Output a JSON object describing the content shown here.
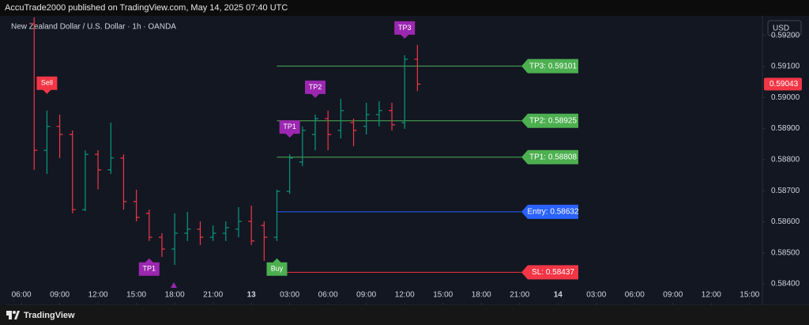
{
  "header": "AccuTrade2000 published on TradingView.com, May 14, 2025 07:40 UTC",
  "footer": "TradingView",
  "chart_data": {
    "type": "ohlc",
    "title": "New Zealand Dollar / U.S. Dollar · 1h · OANDA",
    "currency": "USD",
    "up_color": "#089981",
    "down_color": "#f23645",
    "xlim": [
      -1.18,
      58.0
    ],
    "ylim": [
      0.58377,
      0.59263
    ],
    "xticks": [
      {
        "value": 0,
        "label": "06:00"
      },
      {
        "value": 3,
        "label": "09:00"
      },
      {
        "value": 6,
        "label": "12:00"
      },
      {
        "value": 9,
        "label": "15:00"
      },
      {
        "value": 12,
        "label": "18:00"
      },
      {
        "value": 15,
        "label": "21:00"
      },
      {
        "value": 18,
        "label": "13"
      },
      {
        "value": 21,
        "label": "03:00"
      },
      {
        "value": 24,
        "label": "06:00"
      },
      {
        "value": 27,
        "label": "09:00"
      },
      {
        "value": 30,
        "label": "12:00"
      },
      {
        "value": 33,
        "label": "15:00"
      },
      {
        "value": 36,
        "label": "18:00"
      },
      {
        "value": 39,
        "label": "21:00"
      },
      {
        "value": 42,
        "label": "14"
      },
      {
        "value": 45,
        "label": "03:00"
      },
      {
        "value": 48,
        "label": "06:00"
      },
      {
        "value": 51,
        "label": "09:00"
      },
      {
        "value": 54,
        "label": "12:00"
      },
      {
        "value": 57,
        "label": "15:00"
      }
    ],
    "yticks": [
      {
        "value": 0.592,
        "label": "0.59200"
      },
      {
        "value": 0.591,
        "label": "0.59100"
      },
      {
        "value": 0.59,
        "label": "0.59000"
      },
      {
        "value": 0.589,
        "label": "0.58900"
      },
      {
        "value": 0.588,
        "label": "0.58800"
      },
      {
        "value": 0.587,
        "label": "0.58700"
      },
      {
        "value": 0.586,
        "label": "0.58600"
      },
      {
        "value": 0.585,
        "label": "0.58500"
      },
      {
        "value": 0.584,
        "label": "0.58400"
      }
    ],
    "x": [
      1,
      2,
      3,
      4,
      5,
      6,
      7,
      8,
      9,
      10,
      11,
      12,
      13,
      14,
      15,
      16,
      17,
      18,
      19,
      20,
      21,
      22,
      23,
      24,
      25,
      26,
      27,
      28,
      29,
      30,
      31
    ],
    "open": [
      0.59237,
      0.5883,
      0.58907,
      0.58881,
      0.58639,
      0.58817,
      0.58767,
      0.58805,
      0.58665,
      0.58627,
      0.5855,
      0.58512,
      0.58563,
      0.58576,
      0.5855,
      0.58563,
      0.58576,
      0.58601,
      0.58588,
      0.5855,
      0.58698,
      0.58792,
      0.58881,
      0.58932,
      0.58894,
      0.58919,
      0.58907,
      0.58945,
      0.58958,
      0.58919,
      0.59123
    ],
    "high": [
      0.59258,
      0.58958,
      0.58945,
      0.58894,
      0.5883,
      0.5883,
      0.58919,
      0.58817,
      0.58703,
      0.58639,
      0.58563,
      0.58627,
      0.58632,
      0.58601,
      0.58588,
      0.58601,
      0.58647,
      0.58652,
      0.58601,
      0.58703,
      0.58817,
      0.58907,
      0.58945,
      0.58958,
      0.58996,
      0.58932,
      0.58983,
      0.58988,
      0.58983,
      0.59136,
      0.59169
    ],
    "low": [
      0.58767,
      0.58754,
      0.58805,
      0.58627,
      0.58634,
      0.58704,
      0.58754,
      0.58639,
      0.58601,
      0.58538,
      0.58487,
      0.58461,
      0.58538,
      0.58525,
      0.58538,
      0.58538,
      0.5855,
      0.58525,
      0.58474,
      0.58538,
      0.5869,
      0.58779,
      0.5883,
      0.5883,
      0.58868,
      0.58843,
      0.58881,
      0.58907,
      0.58894,
      0.58899,
      0.59021
    ],
    "close": [
      0.5883,
      0.58907,
      0.58881,
      0.58639,
      0.58817,
      0.58767,
      0.58805,
      0.58665,
      0.58614,
      0.5855,
      0.58512,
      0.58563,
      0.58576,
      0.5855,
      0.58563,
      0.58581,
      0.58601,
      0.58538,
      0.5855,
      0.58698,
      0.58805,
      0.58894,
      0.58932,
      0.58881,
      0.58958,
      0.58894,
      0.58945,
      0.58958,
      0.58912,
      0.59123,
      0.59043
    ],
    "last_price": 0.59043,
    "levels": [
      {
        "label": "TP3: 0.59101",
        "value": 0.59101,
        "color": "#4caf50"
      },
      {
        "label": "TP2: 0.58925",
        "value": 0.58925,
        "color": "#4caf50"
      },
      {
        "label": "TP1: 0.58808",
        "value": 0.58808,
        "color": "#4caf50"
      },
      {
        "label": "Entry: 0.58632",
        "value": 0.58632,
        "color": "#2962ff"
      },
      {
        "label": "SL: 0.58437",
        "value": 0.58437,
        "color": "#f23645"
      }
    ],
    "signals": [
      {
        "label": "Sell",
        "x": 2,
        "position": "above",
        "color": "#f23645"
      },
      {
        "label": "TP1",
        "x": 10,
        "position": "below",
        "color": "#9c27b0"
      },
      {
        "label": "Buy",
        "x": 20,
        "position": "below",
        "color": "#4caf50"
      },
      {
        "label": "TP1",
        "x": 21,
        "position": "above",
        "color": "#9c27b0"
      },
      {
        "label": "TP2",
        "x": 23,
        "position": "above",
        "color": "#9c27b0"
      },
      {
        "label": "TP3",
        "x": 30,
        "position": "above",
        "color": "#9c27b0"
      }
    ]
  }
}
